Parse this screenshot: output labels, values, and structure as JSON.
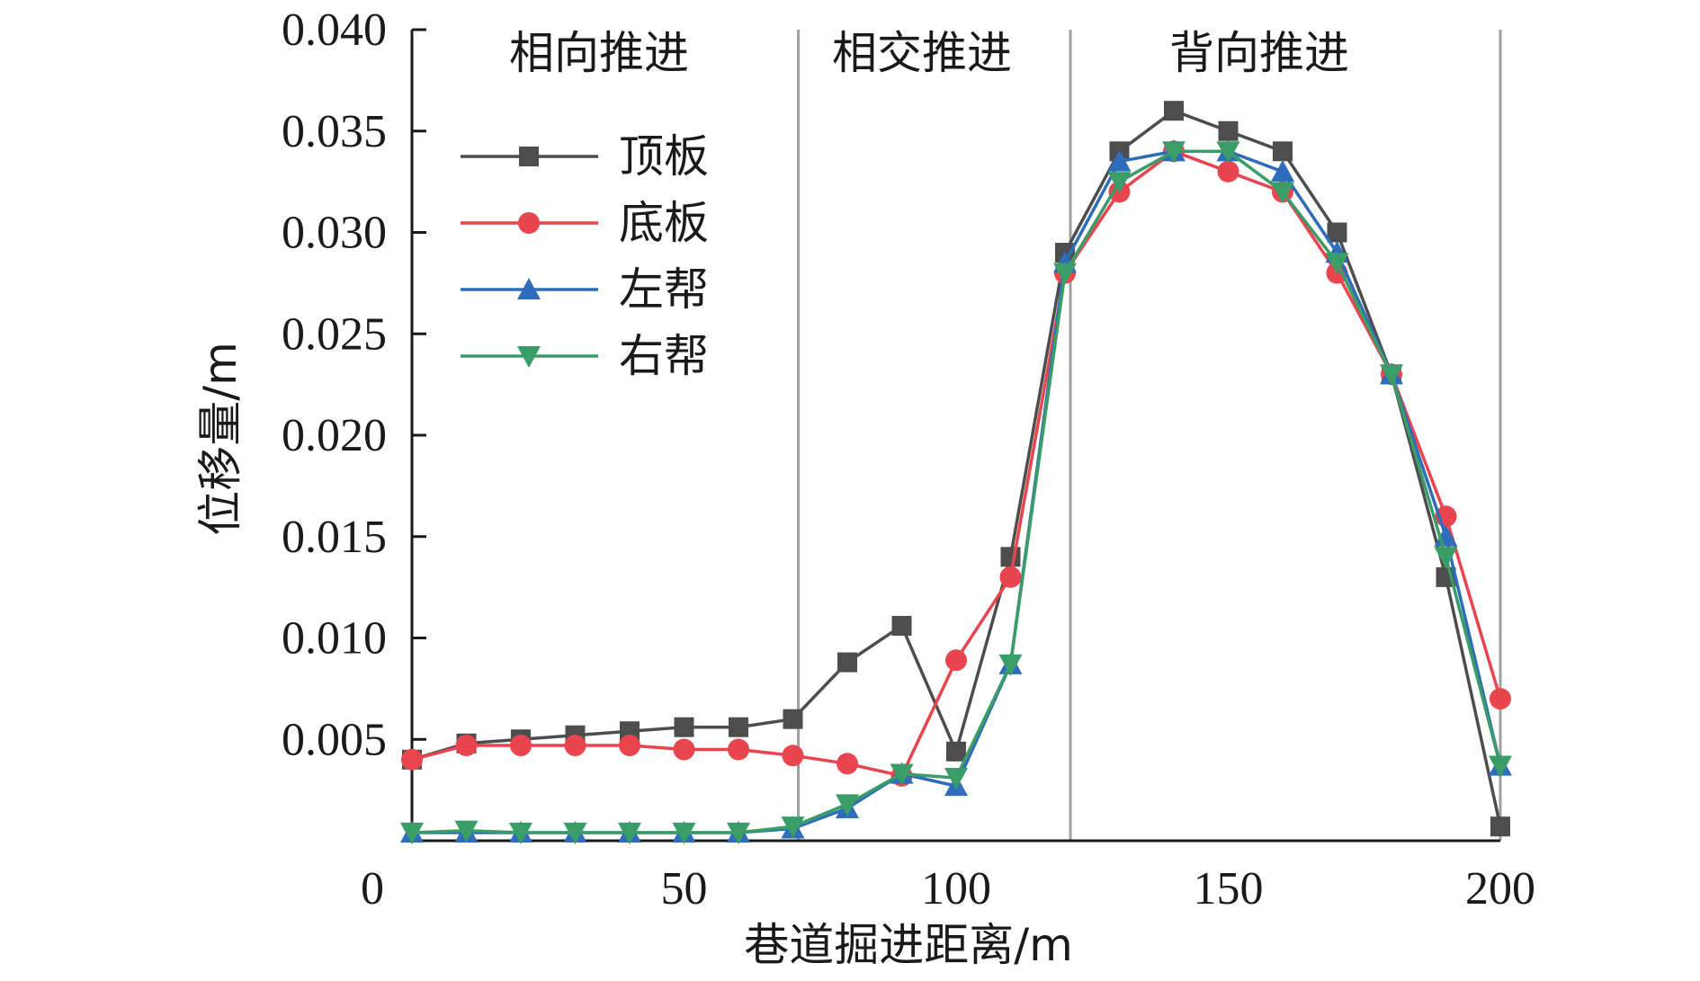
{
  "chart_data": {
    "type": "line",
    "xlabel": "巷道掘进距离/m",
    "ylabel": "位移量/m",
    "xlim": [
      0,
      200
    ],
    "ylim": [
      0,
      0.04
    ],
    "x_ticks": [
      "0",
      "50",
      "100",
      "150",
      "200"
    ],
    "y_ticks": [
      "0.005",
      "0.010",
      "0.015",
      "0.020",
      "0.025",
      "0.030",
      "0.035",
      "0.040"
    ],
    "grid": false,
    "legend_position": "top-left",
    "regions": [
      {
        "label": "相向推进",
        "x_start": 0,
        "x_end": 71
      },
      {
        "label": "相交推进",
        "x_start": 71,
        "x_end": 121
      },
      {
        "label": "背向推进",
        "x_start": 121,
        "x_end": 200
      }
    ],
    "region_boundaries": [
      71,
      121,
      200
    ],
    "x": [
      5,
      15,
      25,
      35,
      45,
      55,
      65,
      75,
      85,
      95,
      105,
      115,
      125,
      135,
      145,
      155,
      165,
      175,
      185,
      195,
      205
    ],
    "series": [
      {
        "name": "顶板",
        "color": "#4d4d4d",
        "marker": "square",
        "values": [
          0.004,
          0.0048,
          0.005,
          0.0052,
          0.0054,
          0.0056,
          0.0056,
          0.006,
          0.0088,
          0.0106,
          0.0044,
          0.014,
          0.029,
          0.034,
          0.036,
          0.035,
          0.034,
          0.03,
          0.023,
          0.013,
          0.0007
        ]
      },
      {
        "name": "底板",
        "color": "#e8454f",
        "marker": "circle",
        "values": [
          0.004,
          0.0047,
          0.0047,
          0.0047,
          0.0047,
          0.0045,
          0.0045,
          0.0042,
          0.0038,
          0.0032,
          0.0089,
          0.013,
          0.028,
          0.032,
          0.034,
          0.033,
          0.032,
          0.028,
          0.023,
          0.016,
          0.007
        ]
      },
      {
        "name": "左帮",
        "color": "#2e6dba",
        "marker": "triangle-up",
        "values": [
          0.0004,
          0.0004,
          0.0004,
          0.0004,
          0.0004,
          0.0004,
          0.0004,
          0.0006,
          0.0016,
          0.0033,
          0.0027,
          0.0087,
          0.0285,
          0.0335,
          0.034,
          0.034,
          0.033,
          0.029,
          0.023,
          0.015,
          0.0037
        ]
      },
      {
        "name": "右帮",
        "color": "#3a9d68",
        "marker": "triangle-down",
        "values": [
          0.0004,
          0.0005,
          0.0004,
          0.0004,
          0.0004,
          0.0004,
          0.0004,
          0.0007,
          0.0018,
          0.0033,
          0.0031,
          0.0087,
          0.028,
          0.0325,
          0.034,
          0.034,
          0.032,
          0.0285,
          0.023,
          0.014,
          0.0037
        ]
      }
    ]
  }
}
